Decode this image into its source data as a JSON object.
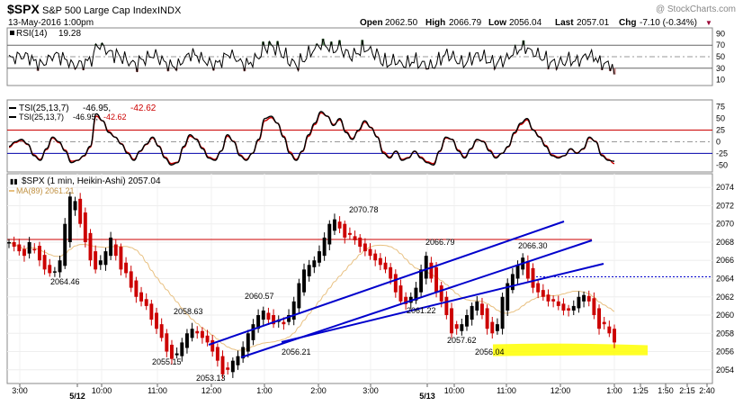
{
  "header": {
    "symbol": "$SPX",
    "name": "S&P 500 Large Cap Index",
    "exchange": "INDX",
    "date": "13-May-2016 1:00pm",
    "open_label": "Open",
    "open": "2062.50",
    "high_label": "High",
    "high": "2066.79",
    "low_label": "Low",
    "low": "2056.04",
    "last_label": "Last",
    "last": "2057.01",
    "chg_label": "Chg",
    "chg": "-7.10 (-0.34%)",
    "watermark": "@ StockCharts.com"
  },
  "colors": {
    "up": "#000000",
    "down": "#cc0000",
    "channel": "#0000cc",
    "ma": "#e8c080",
    "rsi_fill_high": "#5a8a5a",
    "rsi_fill_low": "#c08080",
    "resistance": "#cc0000",
    "highlight": "#ffff00"
  },
  "chart_data": [
    {
      "type": "line",
      "panel": "rsi",
      "label_indicator": "RSI(14)",
      "label_value": "19.28",
      "ylim": [
        0,
        100
      ],
      "yticks": [
        10,
        30,
        50,
        70,
        90
      ],
      "reference_lines": [
        30,
        50,
        70
      ]
    },
    {
      "type": "line",
      "panel": "tsi",
      "label1_indicator": "TSI(25,13,7)",
      "label1_value": "-46.95,",
      "label1_value2": "-42.62",
      "label2_indicator": "TSI(25,13,7)",
      "label2_value": "-46.95,",
      "label2_value2": "-42.62",
      "ylim": [
        -65,
        90
      ],
      "yticks": [
        -50,
        -25,
        0,
        25,
        50,
        75
      ],
      "reference_lines": [
        -25,
        0,
        25
      ],
      "signal_lines": [
        -25,
        25
      ],
      "series": [
        {
          "values": [
            -10,
            0,
            5,
            -5,
            -30,
            -40,
            -15,
            10,
            0,
            -20,
            -45,
            -40,
            -30,
            -10,
            60,
            45,
            20,
            10,
            -5,
            -25,
            -40,
            -20,
            -5,
            10,
            -10,
            -35,
            -50,
            -45,
            -10,
            15,
            5,
            -15,
            -35,
            -40,
            -20,
            15,
            0,
            -30,
            -40,
            -25,
            5,
            50,
            55,
            40,
            10,
            -25,
            -40,
            -20,
            15,
            40,
            65,
            55,
            35,
            50,
            20,
            5,
            25,
            45,
            30,
            10,
            -25,
            -35,
            -20,
            -40,
            -35,
            -20,
            -35,
            -45,
            -50,
            -20,
            10,
            5,
            -20,
            -35,
            -15,
            5,
            0,
            -20,
            -35,
            -25,
            -10,
            20,
            40,
            50,
            25,
            10,
            -10,
            -30,
            -35,
            -30,
            -15,
            -25,
            -15,
            10,
            0,
            -30,
            -40,
            -42
          ]
        },
        {
          "values": [
            -12,
            -2,
            3,
            -6,
            -28,
            -38,
            -17,
            8,
            -2,
            -18,
            -42,
            -40,
            -31,
            -12,
            55,
            45,
            22,
            10,
            -4,
            -23,
            -38,
            -21,
            -6,
            8,
            -9,
            -33,
            -47,
            -44,
            -12,
            12,
            6,
            -13,
            -33,
            -38,
            -20,
            12,
            1,
            -28,
            -38,
            -25,
            3,
            45,
            52,
            40,
            12,
            -22,
            -38,
            -21,
            12,
            37,
            62,
            55,
            37,
            47,
            22,
            7,
            23,
            42,
            31,
            11,
            -22,
            -33,
            -21,
            -38,
            -34,
            -21,
            -33,
            -43,
            -47,
            -21,
            8,
            5,
            -18,
            -33,
            -16,
            4,
            1,
            -18,
            -33,
            -25,
            -11,
            18,
            37,
            47,
            26,
            11,
            -8,
            -28,
            -33,
            -30,
            -16,
            -24,
            -16,
            8,
            1,
            -28,
            -38,
            -47
          ]
        }
      ]
    },
    {
      "type": "candlestick",
      "panel": "price",
      "label": "$SPX (1 min, Heikin-Ashi) 2057.04",
      "ma_label": "MA(89) 2061.21",
      "ylim": [
        2052.5,
        2075.5
      ],
      "yticks": [
        2054,
        2056,
        2058,
        2060,
        2062,
        2064,
        2066,
        2068,
        2070,
        2072,
        2074
      ],
      "xticks": [
        "3:00",
        "5/12",
        "10:00",
        "11:00",
        "12:00",
        "1:00",
        "2:00",
        "3:00",
        "5/13",
        "10:00",
        "11:00",
        "12:00",
        "1:00",
        "1:25",
        "1:50",
        "2:15",
        "2:40"
      ],
      "price_labels": [
        "2064.46",
        "2058.63",
        "2055.15",
        "2053.13",
        "2060.57",
        "2056.21",
        "2070.78",
        "2066.79",
        "2061.22",
        "2057.62",
        "2056.04",
        "2066.30"
      ],
      "resistance_level": 2068.3,
      "dotted_level": 2064.2,
      "highlight_zone": [
        2055.6,
        2056.8
      ],
      "channels": [
        {
          "from": [
            "12:00",
            2055.6
          ],
          "to": [
            "1:00",
            2070.5
          ]
        },
        {
          "from": [
            "12:00",
            2053.9
          ],
          "to": [
            "1:00",
            2068.3
          ]
        },
        {
          "from": [
            "1:00",
            2054.7
          ],
          "to": [
            "1:00",
            2065.3
          ]
        }
      ],
      "closes": [
        2068,
        2067.5,
        2067,
        2066.5,
        2068,
        2067.2,
        2066,
        2065,
        2064.6,
        2064.8,
        2066,
        2070,
        2073,
        2072.5,
        2070,
        2068,
        2066,
        2065,
        2066,
        2067,
        2068.5,
        2066.5,
        2065,
        2064.6,
        2063,
        2062,
        2061.5,
        2061,
        2059.5,
        2058.5,
        2057.5,
        2056,
        2055.2,
        2055.8,
        2057,
        2058,
        2058.5,
        2058,
        2057.5,
        2057,
        2056,
        2055,
        2053.5,
        2054,
        2055,
        2055.5,
        2056.5,
        2058,
        2059,
        2060,
        2060.5,
        2059.5,
        2059,
        2059.5,
        2059,
        2060,
        2061.5,
        2063.5,
        2065,
        2065.5,
        2066,
        2067,
        2068.5,
        2070,
        2070.5,
        2069.5,
        2068.5,
        2068.8,
        2068.2,
        2067.5,
        2067,
        2066.5,
        2066,
        2065.5,
        2065,
        2064,
        2062.5,
        2061.5,
        2061.2,
        2062,
        2063,
        2065,
        2066.5,
        2064,
        2062.5,
        2061.5,
        2060,
        2058,
        2058.5,
        2059,
        2060,
        2061,
        2061.5,
        2060,
        2058.5,
        2058,
        2059,
        2062,
        2063.5,
        2064.5,
        2065.5,
        2066.3,
        2064,
        2063,
        2062.5,
        2062,
        2061.5,
        2061.5,
        2061,
        2060.5,
        2060.5,
        2061,
        2062,
        2062.2,
        2061.5,
        2060,
        2058.5,
        2059,
        2058,
        2057
      ]
    }
  ]
}
